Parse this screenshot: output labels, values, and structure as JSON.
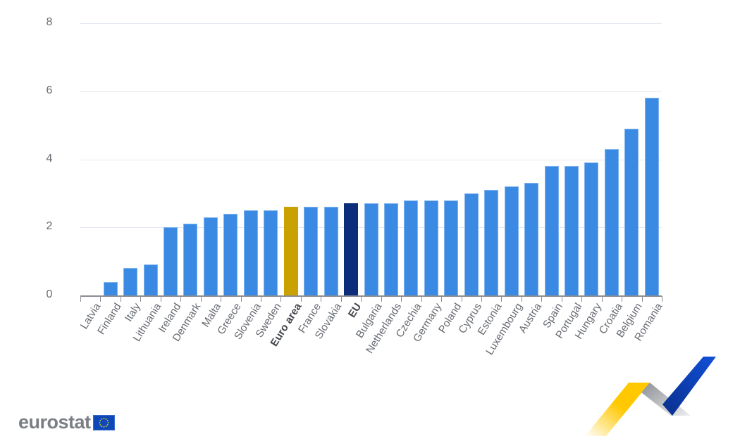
{
  "chart_data": {
    "type": "bar",
    "title": "",
    "xlabel": "",
    "ylabel": "",
    "ylim": [
      0,
      8
    ],
    "yticks": [
      0,
      2,
      4,
      6,
      8
    ],
    "grid": true,
    "legend": null,
    "categories": [
      "Latvia",
      "Finland",
      "Italy",
      "Lithuania",
      "Ireland",
      "Denmark",
      "Malta",
      "Greece",
      "Slovenia",
      "Sweden",
      "Euro area",
      "France",
      "Slovakia",
      "EU",
      "Bulgaria",
      "Netherlands",
      "Czechia",
      "Germany",
      "Poland",
      "Cyprus",
      "Estonia",
      "Luxembourg",
      "Austria",
      "Spain",
      "Portugal",
      "Hungary",
      "Croatia",
      "Belgium",
      "Romania"
    ],
    "values": [
      0,
      0.4,
      0.8,
      0.9,
      2.0,
      2.1,
      2.3,
      2.4,
      2.5,
      2.5,
      2.6,
      2.6,
      2.6,
      2.7,
      2.7,
      2.7,
      2.8,
      2.8,
      2.8,
      3.0,
      3.1,
      3.2,
      3.3,
      3.8,
      3.8,
      3.9,
      4.3,
      4.9,
      5.8
    ],
    "highlight": {
      "Euro area": "#c9a100",
      "EU": "#0b2d7a"
    },
    "bold_labels": [
      "Euro area",
      "EU"
    ],
    "default_color": "#3a8ae3"
  },
  "branding": {
    "logo_text": "eurostat",
    "flag_icon": "eu-flag-icon"
  }
}
